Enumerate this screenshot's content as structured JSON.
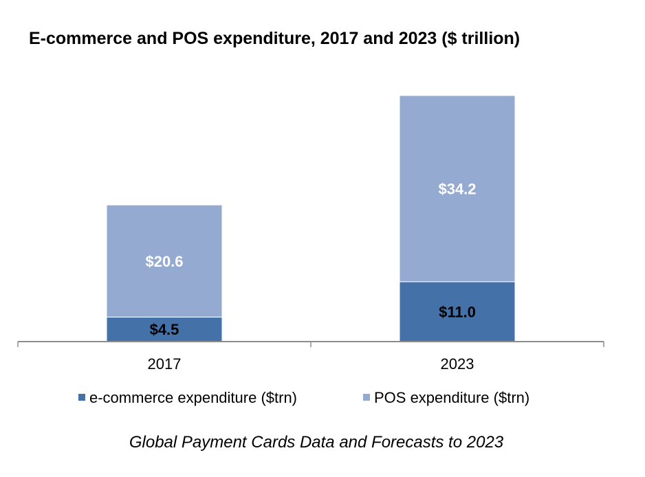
{
  "chart_data": {
    "type": "bar",
    "stacked": true,
    "title": "E-commerce and POS expenditure, 2017 and 2023 ($ trillion)",
    "xlabel": "",
    "ylabel": "",
    "categories": [
      "2017",
      "2023"
    ],
    "series": [
      {
        "name": "e-commerce expenditure ($trn)",
        "values": [
          4.5,
          11.0
        ],
        "labels": [
          "$4.5",
          "$11.0"
        ],
        "color": "#4472a8",
        "label_color": "#000000"
      },
      {
        "name": "POS expenditure ($trn)",
        "values": [
          20.6,
          34.2
        ],
        "labels": [
          "$20.6",
          "$34.2"
        ],
        "color": "#95aad0",
        "label_color": "#ffffff"
      }
    ],
    "ylim": [
      0,
      45.2
    ],
    "grid": false,
    "y_axis_visible": false,
    "legend_position": "bottom",
    "source_note": "Global Payment Cards Data and Forecasts to 2023"
  },
  "colors": {
    "axis": "#8c8c8c",
    "background": "#ffffff"
  }
}
